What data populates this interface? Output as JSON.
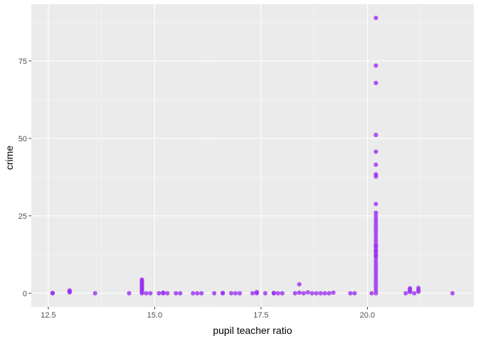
{
  "chart_data": {
    "type": "scatter",
    "title": "",
    "xlabel": "pupil teacher ratio",
    "ylabel": "crime",
    "xlim": [
      12.1,
      22.5
    ],
    "ylim": [
      -4.4,
      93.3
    ],
    "x_ticks": [
      12.5,
      15.0,
      17.5,
      20.0
    ],
    "x_tick_labels": [
      "12.5",
      "15.0",
      "17.5",
      "20.0"
    ],
    "y_ticks": [
      0,
      25,
      50,
      75
    ],
    "y_tick_labels": [
      "0",
      "25",
      "50",
      "75"
    ],
    "grid": true,
    "legend": "none",
    "colors": {
      "point": "#9B30F0",
      "panel": "#EBEBEB",
      "grid_major": "#FFFFFF",
      "grid_minor": "#F5F5F5"
    },
    "series": [
      {
        "x": [
          12.6,
          12.6,
          13.0,
          13.0,
          13.0,
          13.6,
          14.4,
          14.7,
          14.7,
          14.7,
          14.7,
          14.7,
          14.7,
          14.7,
          14.7,
          14.7,
          14.7,
          14.8,
          14.9,
          15.1,
          15.2,
          15.2,
          15.3,
          15.5,
          15.6,
          15.9,
          16.0,
          16.1,
          16.4,
          16.6,
          16.6,
          16.8,
          16.9,
          17.0,
          17.3,
          17.4,
          17.4,
          17.6,
          17.8,
          17.8,
          17.9,
          18.0,
          18.3,
          18.4,
          18.4,
          18.5,
          18.6,
          18.7,
          18.8,
          18.9,
          19.0,
          19.1,
          19.2,
          19.6,
          19.7,
          20.2,
          20.2,
          20.2,
          20.2,
          20.2,
          20.2,
          20.2,
          20.2,
          20.2,
          20.2,
          20.2,
          20.2,
          20.2,
          20.2,
          20.2,
          20.2,
          20.2,
          20.2,
          20.2,
          20.2,
          20.2,
          20.2,
          20.2,
          20.2,
          20.2,
          20.2,
          20.2,
          20.2,
          20.2,
          20.2,
          20.2,
          20.2,
          20.2,
          20.2,
          20.2,
          20.2,
          20.2,
          20.2,
          20.2,
          20.1,
          20.9,
          21.0,
          21.0,
          21.0,
          21.0,
          21.1,
          21.2,
          21.2,
          21.2,
          22.0
        ],
        "y": [
          0.0,
          0.1,
          0.3,
          0.6,
          0.9,
          0.0,
          0.0,
          0.0,
          0.5,
          1.0,
          1.5,
          2.0,
          2.5,
          3.0,
          3.5,
          4.0,
          4.4,
          0.0,
          0.0,
          0.0,
          0.0,
          0.2,
          0.0,
          0.0,
          0.0,
          0.0,
          0.0,
          0.0,
          0.0,
          0.0,
          0.1,
          0.0,
          0.0,
          0.0,
          0.0,
          0.0,
          0.4,
          0.0,
          0.0,
          0.1,
          0.0,
          0.0,
          0.0,
          0.2,
          2.9,
          0.0,
          0.3,
          0.0,
          0.0,
          0.0,
          0.0,
          0.0,
          0.2,
          0.0,
          0.0,
          0.0,
          1.0,
          2.0,
          3.0,
          4.0,
          5.0,
          6.0,
          7.0,
          8.0,
          9.0,
          10.0,
          11.0,
          12.0,
          13.0,
          14.0,
          15.0,
          16.0,
          17.0,
          18.0,
          19.0,
          20.0,
          21.0,
          22.0,
          23.0,
          24.0,
          25.0,
          26.0,
          28.8,
          38.4,
          37.7,
          41.5,
          45.7,
          51.1,
          67.9,
          73.5,
          88.9,
          15.3,
          13.7,
          12.2,
          0.0,
          0.0,
          0.4,
          0.8,
          1.2,
          1.6,
          0.0,
          0.5,
          1.0,
          1.7,
          0.0
        ]
      }
    ]
  }
}
